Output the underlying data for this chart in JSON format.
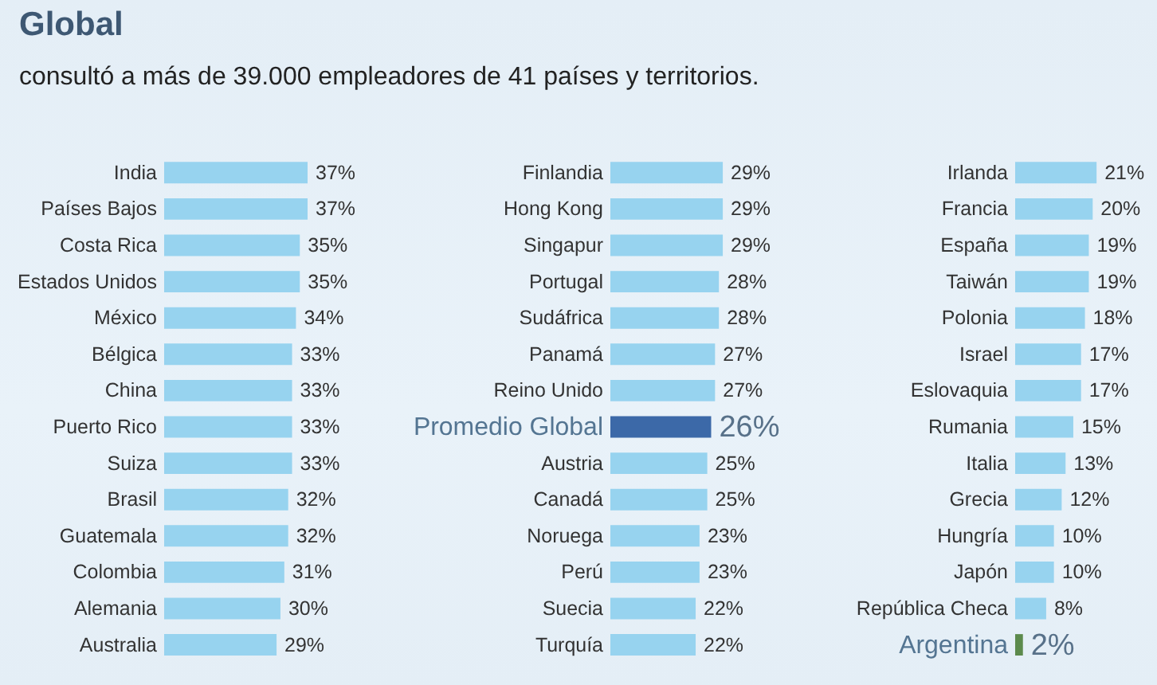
{
  "chart_data": [
    {
      "type": "bar",
      "orientation": "horizontal",
      "title": "Global",
      "subtitle": "consultó a más de 39.000 empleadores de 41 países y territorios.",
      "categories": [
        "India",
        "Países Bajos",
        "Costa Rica",
        "Estados Unidos",
        "México",
        "Bélgica",
        "China",
        "Puerto Rico",
        "Suiza",
        "Brasil",
        "Guatemala",
        "Colombia",
        "Alemania",
        "Australia"
      ],
      "values": [
        37,
        37,
        35,
        35,
        34,
        33,
        33,
        33,
        33,
        32,
        32,
        31,
        30,
        29
      ],
      "colors": [
        "#97d3ef",
        "#97d3ef",
        "#97d3ef",
        "#97d3ef",
        "#97d3ef",
        "#97d3ef",
        "#97d3ef",
        "#97d3ef",
        "#97d3ef",
        "#97d3ef",
        "#97d3ef",
        "#97d3ef",
        "#97d3ef",
        "#97d3ef"
      ],
      "value_labels": [
        "37%",
        "37%",
        "35%",
        "35%",
        "34%",
        "33%",
        "33%",
        "33%",
        "33%",
        "32%",
        "32%",
        "31%",
        "30%",
        "29%"
      ]
    },
    {
      "type": "bar",
      "orientation": "horizontal",
      "categories": [
        "Finlandia",
        "Hong Kong",
        "Singapur",
        "Portugal",
        "Sudáfrica",
        "Panamá",
        "Reino Unido",
        "Promedio Global",
        "Austria",
        "Canadá",
        "Noruega",
        "Perú",
        "Suecia",
        "Turquía"
      ],
      "values": [
        29,
        29,
        29,
        28,
        28,
        27,
        27,
        26,
        25,
        25,
        23,
        23,
        22,
        22
      ],
      "colors": [
        "#97d3ef",
        "#97d3ef",
        "#97d3ef",
        "#97d3ef",
        "#97d3ef",
        "#97d3ef",
        "#97d3ef",
        "#3c69a8",
        "#97d3ef",
        "#97d3ef",
        "#97d3ef",
        "#97d3ef",
        "#97d3ef",
        "#97d3ef"
      ],
      "value_labels": [
        "29%",
        "29%",
        "29%",
        "28%",
        "28%",
        "27%",
        "27%",
        "26%",
        "25%",
        "25%",
        "23%",
        "23%",
        "22%",
        "22%"
      ]
    },
    {
      "type": "bar",
      "orientation": "horizontal",
      "categories": [
        "Irlanda",
        "Francia",
        "España",
        "Taiwán",
        "Polonia",
        "Israel",
        "Eslovaquia",
        "Rumania",
        "Italia",
        "Grecia",
        "Hungría",
        "Japón",
        "República Checa",
        "Argentina"
      ],
      "values": [
        21,
        20,
        19,
        19,
        18,
        17,
        17,
        15,
        13,
        12,
        10,
        10,
        8,
        2
      ],
      "colors": [
        "#97d3ef",
        "#97d3ef",
        "#97d3ef",
        "#97d3ef",
        "#97d3ef",
        "#97d3ef",
        "#97d3ef",
        "#97d3ef",
        "#97d3ef",
        "#97d3ef",
        "#97d3ef",
        "#97d3ef",
        "#97d3ef",
        "#5c8a4c"
      ],
      "value_labels": [
        "21%",
        "20%",
        "19%",
        "19%",
        "18%",
        "17%",
        "17%",
        "15%",
        "13%",
        "12%",
        "10%",
        "10%",
        "8%",
        "2%"
      ]
    }
  ]
}
